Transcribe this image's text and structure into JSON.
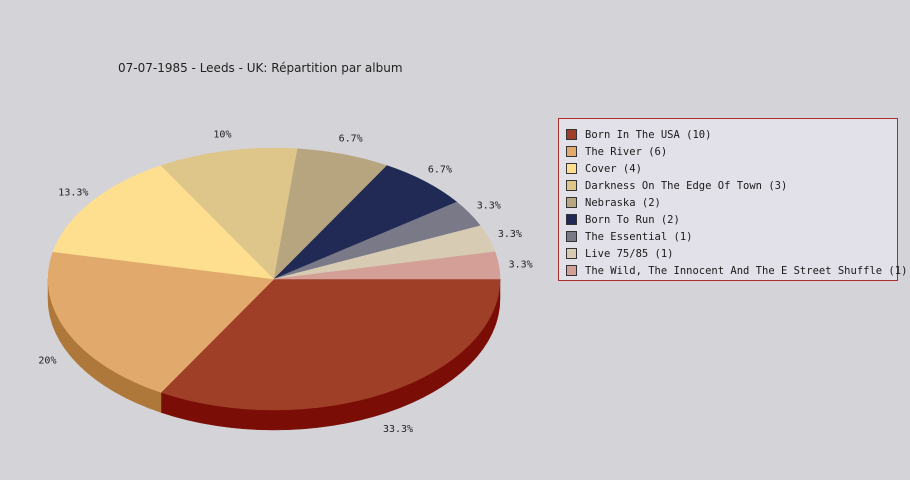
{
  "chart_data": {
    "type": "pie",
    "title": "07-07-1985 - Leeds - UK:  Répartition par album",
    "slices": [
      {
        "label": "Born In The USA (10)",
        "value": 10,
        "percent_label": "33.3%",
        "color": "#a03f28",
        "side_color": "#7a0d06"
      },
      {
        "label": "The River (6)",
        "value": 6,
        "percent_label": "20%",
        "color": "#e1aa6c",
        "side_color": "#ad7839"
      },
      {
        "label": "Cover (4)",
        "value": 4,
        "percent_label": "13.3%",
        "color": "#fedf8f",
        "side_color": "#c8a85c"
      },
      {
        "label": "Darkness On The Edge Of Town (3)",
        "value": 3,
        "percent_label": "10%",
        "color": "#dec68b",
        "side_color": "#ab955a"
      },
      {
        "label": "Nebraska (2)",
        "value": 2,
        "percent_label": "6.7%",
        "color": "#b6a57f",
        "side_color": "#85764f"
      },
      {
        "label": "Born To Run (2)",
        "value": 2,
        "percent_label": "6.7%",
        "color": "#212a55",
        "side_color": "#0e1433"
      },
      {
        "label": "The Essential (1)",
        "value": 1,
        "percent_label": "3.3%",
        "color": "#7a7988",
        "side_color": "#52515f"
      },
      {
        "label": "Live 75/85 (1)",
        "value": 1,
        "percent_label": "3.3%",
        "color": "#d7cbb3",
        "side_color": "#a59a83"
      },
      {
        "label": "The Wild, The Innocent And The E Street Shuffle (1)",
        "value": 1,
        "percent_label": "3.3%",
        "color": "#d39f97",
        "side_color": "#a3706a"
      }
    ],
    "legend": {
      "position": "right"
    }
  }
}
